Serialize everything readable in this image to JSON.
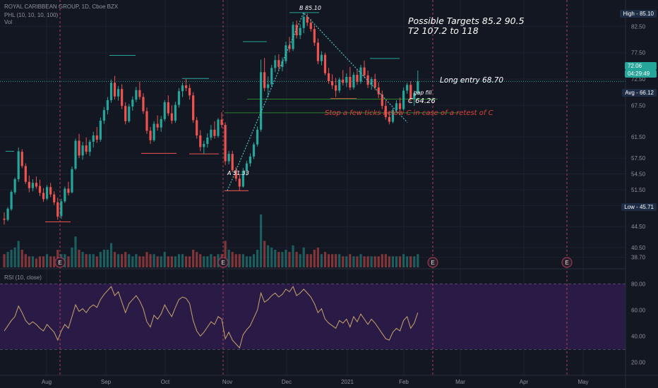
{
  "header": {
    "title": "ROYAL CARIBBEAN GROUP, 1D, Cboe BZX",
    "indicator": "PHL (10, 10, 10, 100)",
    "volume": "Vol",
    "rsi": "RSI (10, close)"
  },
  "annotations": {
    "targets_line1": "Possible Targets    85.2  90.5",
    "targets_line2": "T2  107.2 to 118",
    "long_entry": "Long entry  68.70",
    "gap_fill": "gap fill",
    "c_label": "C  64.26",
    "stop_note": "Stop a few ticks below C in case of a retest of C",
    "a_label": "A 51.33",
    "b_label": "B 85.10"
  },
  "badges": {
    "high": "High - 85.10",
    "price": "72.06",
    "countdown": "04:29:49",
    "avg": "Avg - 66.12",
    "low": "Low - 45.71"
  },
  "colors": {
    "background": "#131722",
    "up": "#26a69a",
    "down": "#ef5350",
    "rsi_line": "#c9a46a",
    "rsi_band": "#2a1b46",
    "target_text": "#ffffff",
    "stop_text": "#e0413a",
    "pattern_line": "#4fc3c3"
  },
  "chart_data": {
    "type": "candlestick",
    "title": "ROYAL CARIBBEAN GROUP, 1D, Cboe BZX",
    "price_axis": {
      "range": [
        36.5,
        87.5
      ],
      "ticks": [
        "82.50",
        "77.50",
        "72.50",
        "67.50",
        "61.50",
        "57.50",
        "54.50",
        "51.50",
        "48.50",
        "44.50",
        "40.50",
        "38.70"
      ]
    },
    "rsi_axis": {
      "range": [
        10,
        90
      ],
      "ticks": [
        "80.00",
        "60.00",
        "40.00",
        "20.00"
      ],
      "bands": [
        30,
        80
      ]
    },
    "time_axis": [
      "Aug",
      "Sep",
      "Oct",
      "Nov",
      "Dec",
      "2021",
      "Feb",
      "Mar",
      "Apr",
      "May"
    ],
    "ohlc_key": [
      "open",
      "high",
      "low",
      "close"
    ],
    "ohlc": [
      [
        46.0,
        47.2,
        44.9,
        45.8
      ],
      [
        45.8,
        48.2,
        45.5,
        47.9
      ],
      [
        47.8,
        51.4,
        47.5,
        51.1
      ],
      [
        51.0,
        53.8,
        50.6,
        53.5
      ],
      [
        53.5,
        59.5,
        53.0,
        58.8
      ],
      [
        58.7,
        59.2,
        55.6,
        56.0
      ],
      [
        56.0,
        56.5,
        52.6,
        53.0
      ],
      [
        53.0,
        54.2,
        51.0,
        51.8
      ],
      [
        51.8,
        53.5,
        51.2,
        52.8
      ],
      [
        52.8,
        54.0,
        51.7,
        52.1
      ],
      [
        52.2,
        53.4,
        50.3,
        50.9
      ],
      [
        50.9,
        51.8,
        49.2,
        49.7
      ],
      [
        49.8,
        52.4,
        49.5,
        52.0
      ],
      [
        52.0,
        52.8,
        50.1,
        50.6
      ],
      [
        50.6,
        51.2,
        48.6,
        49.1
      ],
      [
        49.1,
        50.0,
        45.8,
        46.4
      ],
      [
        46.5,
        49.8,
        46.0,
        49.3
      ],
      [
        49.3,
        52.1,
        49.0,
        51.7
      ],
      [
        51.7,
        53.0,
        50.4,
        50.9
      ],
      [
        51.0,
        55.9,
        50.8,
        55.4
      ],
      [
        55.5,
        61.2,
        55.2,
        60.8
      ],
      [
        60.8,
        62.1,
        57.5,
        58.0
      ],
      [
        58.0,
        60.6,
        57.2,
        59.9
      ],
      [
        59.9,
        61.4,
        58.2,
        58.7
      ],
      [
        58.7,
        61.0,
        57.9,
        60.6
      ],
      [
        60.6,
        62.5,
        59.5,
        61.8
      ],
      [
        61.8,
        63.4,
        60.4,
        61.0
      ],
      [
        61.0,
        65.2,
        60.6,
        64.6
      ],
      [
        64.6,
        67.2,
        64.0,
        66.6
      ],
      [
        66.6,
        69.1,
        65.8,
        68.5
      ],
      [
        68.5,
        72.4,
        68.0,
        71.8
      ],
      [
        71.8,
        73.1,
        68.6,
        69.2
      ],
      [
        69.2,
        71.2,
        68.4,
        70.6
      ],
      [
        70.6,
        71.5,
        66.8,
        67.4
      ],
      [
        67.4,
        68.1,
        63.9,
        64.5
      ],
      [
        64.5,
        67.8,
        64.2,
        67.3
      ],
      [
        67.3,
        69.2,
        66.5,
        68.6
      ],
      [
        68.6,
        71.0,
        68.1,
        70.4
      ],
      [
        70.4,
        72.0,
        68.6,
        69.1
      ],
      [
        69.1,
        69.8,
        65.9,
        66.4
      ],
      [
        66.4,
        67.1,
        62.1,
        62.7
      ],
      [
        62.7,
        63.4,
        60.2,
        60.9
      ],
      [
        60.9,
        64.5,
        60.6,
        64.0
      ],
      [
        64.0,
        65.6,
        62.7,
        63.3
      ],
      [
        63.3,
        65.5,
        62.5,
        64.9
      ],
      [
        64.9,
        68.5,
        64.5,
        68.1
      ],
      [
        68.1,
        69.4,
        65.5,
        66.0
      ],
      [
        66.0,
        67.5,
        64.0,
        64.6
      ],
      [
        64.6,
        68.2,
        64.2,
        67.6
      ],
      [
        67.6,
        70.8,
        67.1,
        70.2
      ],
      [
        70.2,
        71.8,
        69.1,
        71.3
      ],
      [
        71.3,
        72.5,
        70.2,
        70.8
      ],
      [
        70.8,
        71.5,
        68.6,
        69.4
      ],
      [
        69.4,
        70.0,
        64.2,
        64.7
      ],
      [
        64.7,
        65.3,
        61.2,
        61.8
      ],
      [
        61.8,
        62.8,
        58.8,
        59.6
      ],
      [
        59.6,
        60.8,
        58.3,
        60.2
      ],
      [
        60.2,
        62.2,
        59.5,
        61.4
      ],
      [
        61.4,
        63.8,
        60.9,
        62.9
      ],
      [
        62.9,
        64.5,
        61.2,
        61.7
      ],
      [
        61.7,
        65.1,
        61.4,
        64.8
      ],
      [
        64.8,
        66.2,
        63.2,
        63.8
      ],
      [
        63.8,
        64.3,
        56.2,
        56.9
      ],
      [
        56.9,
        58.9,
        56.3,
        58.3
      ],
      [
        58.3,
        58.9,
        54.8,
        55.2
      ],
      [
        55.2,
        55.8,
        53.1,
        53.6
      ],
      [
        53.6,
        54.5,
        51.3,
        52.1
      ],
      [
        52.1,
        55.6,
        51.9,
        55.1
      ],
      [
        55.1,
        57.0,
        54.2,
        56.5
      ],
      [
        56.5,
        58.4,
        55.9,
        57.8
      ],
      [
        57.8,
        60.5,
        57.3,
        60.1
      ],
      [
        60.1,
        63.5,
        59.7,
        62.9
      ],
      [
        62.9,
        76.2,
        62.5,
        73.8
      ],
      [
        73.8,
        76.5,
        70.2,
        70.8
      ],
      [
        70.8,
        73.0,
        69.1,
        71.5
      ],
      [
        71.5,
        75.2,
        71.0,
        74.6
      ],
      [
        74.6,
        77.0,
        73.8,
        76.1
      ],
      [
        76.1,
        77.2,
        74.1,
        74.8
      ],
      [
        74.8,
        76.6,
        74.0,
        75.9
      ],
      [
        75.9,
        79.6,
        75.4,
        78.9
      ],
      [
        78.9,
        80.5,
        77.6,
        78.2
      ],
      [
        78.2,
        83.4,
        77.8,
        82.8
      ],
      [
        82.8,
        83.6,
        80.2,
        80.8
      ],
      [
        80.8,
        82.9,
        80.1,
        82.2
      ],
      [
        82.2,
        85.1,
        81.2,
        84.3
      ],
      [
        84.3,
        84.9,
        82.6,
        83.2
      ],
      [
        83.2,
        83.9,
        81.5,
        82.0
      ],
      [
        82.0,
        82.7,
        78.8,
        79.4
      ],
      [
        79.4,
        80.2,
        75.3,
        75.9
      ],
      [
        75.9,
        77.8,
        75.1,
        77.1
      ],
      [
        77.1,
        77.5,
        73.2,
        73.6
      ],
      [
        73.6,
        74.6,
        71.6,
        72.1
      ],
      [
        72.1,
        73.4,
        70.6,
        71.3
      ],
      [
        71.3,
        72.7,
        69.1,
        70.3
      ],
      [
        70.3,
        72.8,
        69.9,
        72.4
      ],
      [
        72.4,
        74.2,
        71.3,
        71.8
      ],
      [
        71.8,
        73.6,
        71.0,
        72.9
      ],
      [
        72.9,
        74.8,
        70.4,
        70.9
      ],
      [
        70.9,
        73.8,
        70.5,
        73.3
      ],
      [
        73.3,
        74.4,
        71.4,
        72.0
      ],
      [
        72.0,
        75.2,
        71.6,
        74.7
      ],
      [
        74.7,
        76.0,
        72.7,
        73.2
      ],
      [
        73.2,
        74.1,
        70.8,
        71.4
      ],
      [
        71.4,
        72.9,
        70.5,
        72.5
      ],
      [
        72.5,
        73.5,
        70.4,
        70.9
      ],
      [
        70.9,
        71.9,
        68.9,
        69.6
      ],
      [
        69.6,
        70.3,
        66.8,
        67.4
      ],
      [
        67.4,
        68.4,
        64.8,
        65.3
      ],
      [
        65.3,
        66.4,
        63.9,
        64.4
      ],
      [
        64.4,
        67.0,
        64.1,
        66.6
      ],
      [
        66.6,
        68.5,
        66.1,
        67.9
      ],
      [
        67.9,
        69.0,
        66.3,
        66.8
      ],
      [
        66.8,
        70.9,
        66.5,
        70.3
      ],
      [
        70.3,
        71.8,
        69.7,
        71.4
      ],
      [
        71.4,
        72.1,
        68.2,
        68.7
      ],
      [
        68.7,
        70.3,
        67.4,
        69.8
      ],
      [
        69.8,
        74.1,
        69.5,
        72.1
      ]
    ],
    "volume": [
      6,
      7,
      8,
      9,
      12,
      8,
      6,
      5,
      5,
      4,
      5,
      5,
      6,
      5,
      5,
      8,
      6,
      6,
      5,
      9,
      14,
      8,
      7,
      6,
      6,
      6,
      5,
      7,
      8,
      8,
      11,
      7,
      6,
      6,
      7,
      6,
      5,
      6,
      5,
      5,
      7,
      6,
      6,
      5,
      5,
      7,
      5,
      5,
      5,
      6,
      6,
      5,
      5,
      8,
      7,
      6,
      5,
      5,
      6,
      5,
      6,
      6,
      12,
      8,
      7,
      6,
      6,
      6,
      5,
      5,
      6,
      8,
      24,
      12,
      10,
      9,
      8,
      7,
      7,
      8,
      7,
      10,
      7,
      6,
      9,
      6,
      6,
      8,
      9,
      6,
      7,
      6,
      6,
      6,
      6,
      5,
      5,
      6,
      5,
      5,
      6,
      5,
      5,
      5,
      5,
      5,
      6,
      6,
      5,
      5,
      5,
      5,
      6,
      5,
      5,
      5,
      6
    ],
    "rsi": [
      44,
      48,
      52,
      55,
      63,
      58,
      52,
      49,
      51,
      49,
      46,
      44,
      49,
      46,
      43,
      37,
      44,
      49,
      46,
      55,
      64,
      59,
      61,
      58,
      62,
      64,
      62,
      68,
      72,
      75,
      78,
      71,
      74,
      66,
      58,
      65,
      68,
      71,
      67,
      61,
      51,
      47,
      56,
      53,
      57,
      64,
      59,
      55,
      62,
      68,
      70,
      69,
      65,
      52,
      44,
      40,
      43,
      47,
      51,
      49,
      55,
      53,
      38,
      43,
      37,
      34,
      31,
      41,
      45,
      48,
      54,
      60,
      73,
      66,
      68,
      71,
      73,
      70,
      72,
      76,
      74,
      78,
      71,
      73,
      76,
      73,
      70,
      65,
      58,
      61,
      53,
      50,
      48,
      46,
      52,
      50,
      53,
      47,
      55,
      51,
      57,
      53,
      49,
      53,
      50,
      46,
      42,
      38,
      37,
      43,
      46,
      44,
      52,
      55,
      46,
      50,
      58
    ]
  }
}
